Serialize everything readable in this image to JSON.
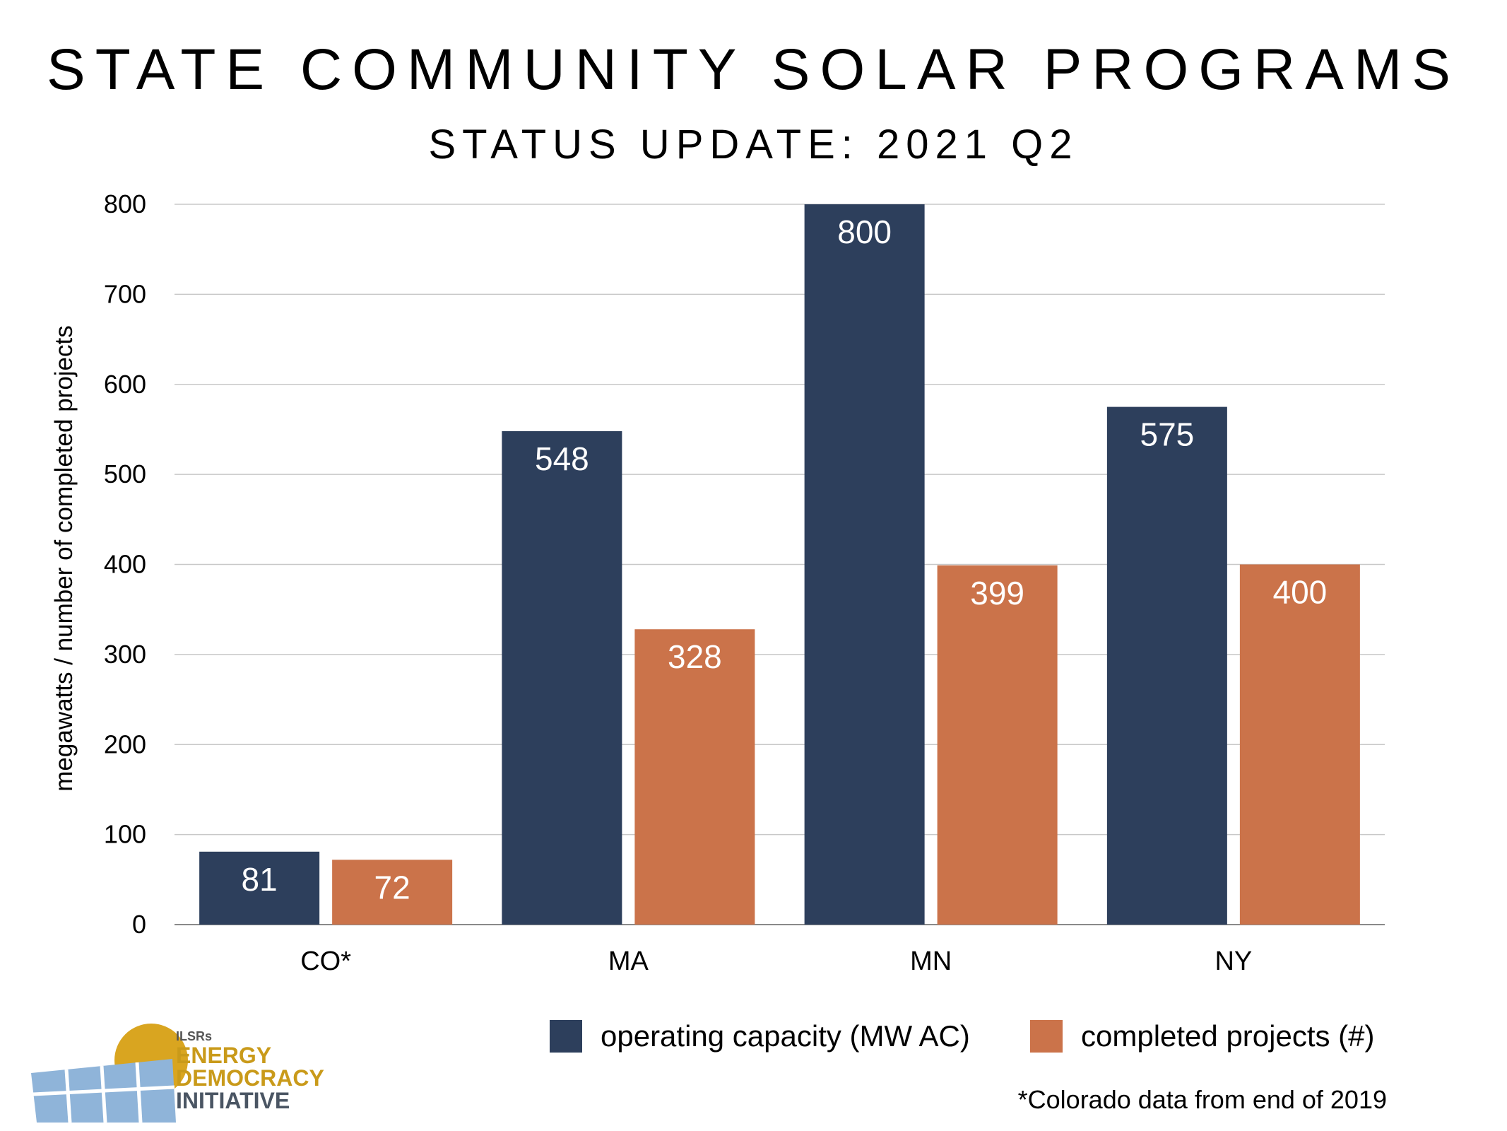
{
  "chart_data": {
    "type": "bar",
    "title": "STATE COMMUNITY SOLAR PROGRAMS",
    "subtitle": "STATUS UPDATE: 2021 Q2",
    "ylabel": "megawatts / number of completed projects",
    "categories": [
      "CO*",
      "MA",
      "MN",
      "NY"
    ],
    "series": [
      {
        "name": "operating capacity (MW AC)",
        "color": "#2d3f5c",
        "values": [
          81,
          548,
          800,
          575
        ]
      },
      {
        "name": "completed projects (#)",
        "color": "#cb734a",
        "values": [
          72,
          328,
          399,
          400
        ]
      }
    ],
    "ylim": [
      0,
      800
    ],
    "yticks": [
      0,
      100,
      200,
      300,
      400,
      500,
      600,
      700,
      800
    ],
    "grid": true,
    "legend_placement": "bottom-right"
  },
  "footnote": "*Colorado data from end of 2019",
  "logo": {
    "line1": "ILSRs",
    "line2": "ENERGY",
    "line3": "DEMOCRACY",
    "line4": "INITIATIVE"
  }
}
